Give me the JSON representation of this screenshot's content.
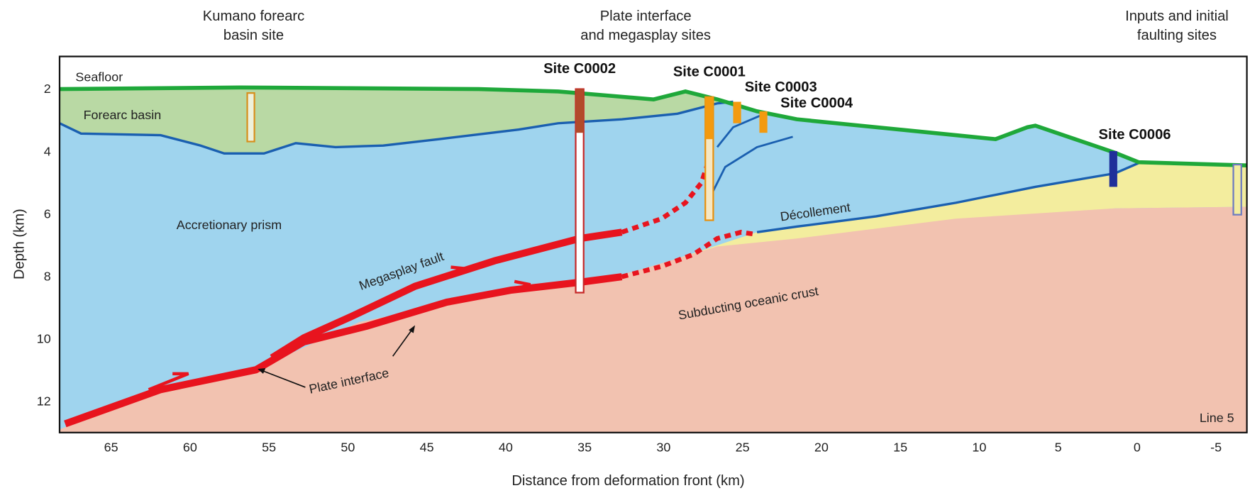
{
  "header": {
    "left": [
      "Kumano forearc",
      "basin site"
    ],
    "center": [
      "Plate interface",
      "and megasplay sites"
    ],
    "right": [
      "Inputs and initial",
      "faulting sites"
    ]
  },
  "axes": {
    "y_label": "Depth (km)",
    "y_ticks": [
      2,
      4,
      6,
      8,
      10,
      12
    ],
    "x_label": "Distance from deformation front (km)",
    "x_ticks": [
      65,
      60,
      55,
      50,
      45,
      40,
      35,
      30,
      25,
      20,
      15,
      10,
      5,
      0,
      -5
    ]
  },
  "sites": [
    "Site C0002",
    "Site C0001",
    "Site C0003",
    "Site C0004",
    "Site C0006"
  ],
  "labels": {
    "seafloor": "Seafloor",
    "forearc_basin": "Forearc basin",
    "accretionary_prism": "Accretionary prism",
    "megasplay_fault": "Megasplay fault",
    "decollement": "Décollement",
    "subducting_crust": "Subducting oceanic crust",
    "plate_interface": "Plate interface",
    "line": "Line 5"
  }
}
